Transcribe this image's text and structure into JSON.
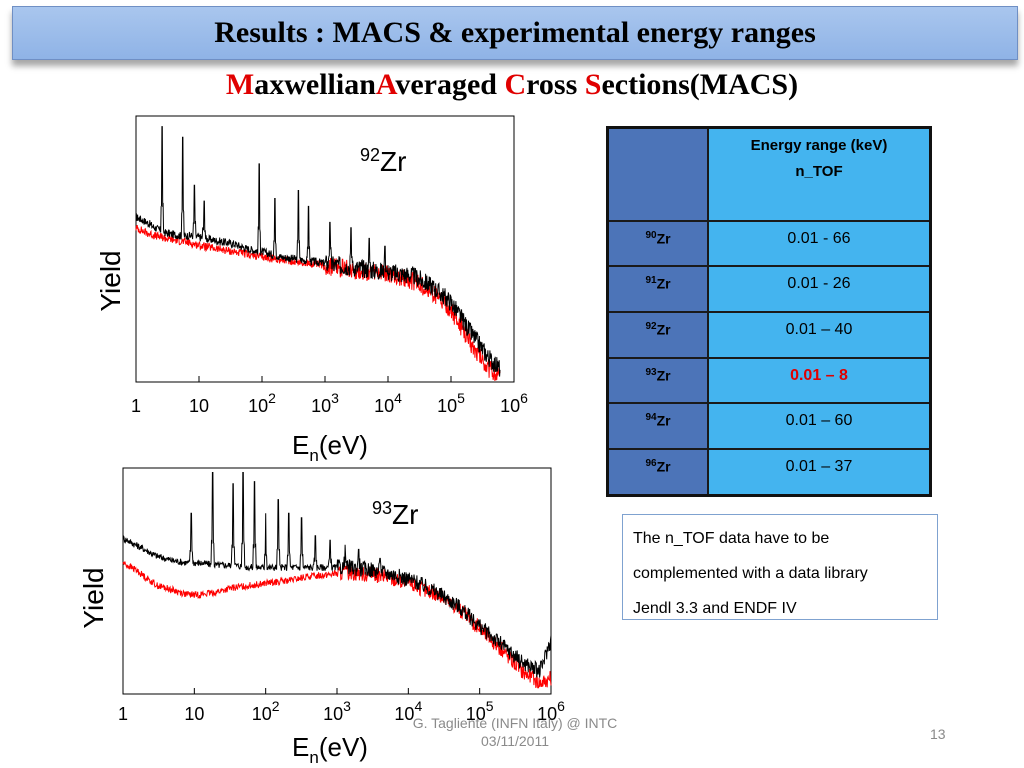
{
  "slide": {
    "title": "Results : MACS & experimental energy ranges",
    "subtitle": {
      "M": "M",
      "axwellian": "axwellian",
      "A": "A",
      "veraged": "veraged ",
      "C": "C",
      "ross": "ross ",
      "S": "S",
      "ections": "ections(MACS)"
    },
    "footer_line1": "G. Tagliente (INFN Italy)  @ INTC",
    "footer_line2": "03/11/2011",
    "page_number": "13"
  },
  "colors": {
    "series_black": "#000000",
    "series_red": "#ff0000",
    "title_bar": "#8fb3e6",
    "table_cell": "#44b4ef",
    "table_header": "#4c74b8",
    "highlight": "#e00000"
  },
  "chart_data": [
    {
      "type": "line",
      "isotope_mass": "92",
      "isotope_symbol": "Zr",
      "ylabel": "Yield",
      "xlabel_main": "E",
      "xlabel_sub": "n",
      "xlabel_unit": "(eV)",
      "x_scale": "log",
      "xlim": [
        1,
        1000000
      ],
      "x_ticks": [
        {
          "value": 1,
          "base": "1",
          "exp": ""
        },
        {
          "value": 10,
          "base": "10",
          "exp": ""
        },
        {
          "value": 100,
          "base": "10",
          "exp": "2"
        },
        {
          "value": 1000,
          "base": "10",
          "exp": "3"
        },
        {
          "value": 10000,
          "base": "10",
          "exp": "4"
        },
        {
          "value": 100000,
          "base": "10",
          "exp": "5"
        },
        {
          "value": 1000000,
          "base": "10",
          "exp": "6"
        }
      ],
      "ylim": [
        0,
        1
      ],
      "series": [
        {
          "color": "#000000",
          "x": [
            1,
            1.5,
            2,
            3,
            5,
            8,
            12,
            20,
            35,
            60,
            100,
            200,
            400,
            800,
            1500,
            3000,
            6000,
            12000,
            25000,
            50000,
            100000,
            200000,
            400000,
            600000
          ],
          "y": [
            0.62,
            0.6,
            0.58,
            0.56,
            0.55,
            0.55,
            0.54,
            0.53,
            0.52,
            0.5,
            0.49,
            0.47,
            0.46,
            0.45,
            0.44,
            0.43,
            0.42,
            0.41,
            0.4,
            0.36,
            0.3,
            0.19,
            0.09,
            0.05
          ],
          "peaks": [
            {
              "x": 2.6,
              "y": 0.96
            },
            {
              "x": 5.5,
              "y": 0.92
            },
            {
              "x": 8.5,
              "y": 0.74
            },
            {
              "x": 12,
              "y": 0.68
            },
            {
              "x": 90,
              "y": 0.82
            },
            {
              "x": 160,
              "y": 0.69
            },
            {
              "x": 380,
              "y": 0.72
            },
            {
              "x": 550,
              "y": 0.66
            },
            {
              "x": 1200,
              "y": 0.6
            },
            {
              "x": 2600,
              "y": 0.58
            },
            {
              "x": 5000,
              "y": 0.54
            },
            {
              "x": 9000,
              "y": 0.51
            }
          ]
        },
        {
          "color": "#ff0000",
          "x": [
            1,
            1.5,
            2,
            3,
            5,
            8,
            12,
            20,
            35,
            60,
            100,
            200,
            400,
            800,
            1500,
            3000,
            6000,
            12000,
            25000,
            50000,
            100000,
            200000,
            400000,
            600000
          ],
          "y": [
            0.58,
            0.56,
            0.55,
            0.54,
            0.53,
            0.52,
            0.51,
            0.5,
            0.49,
            0.48,
            0.47,
            0.46,
            0.45,
            0.44,
            0.43,
            0.42,
            0.41,
            0.4,
            0.38,
            0.34,
            0.27,
            0.15,
            0.05,
            0.02
          ],
          "peaks": []
        }
      ]
    },
    {
      "type": "line",
      "isotope_mass": "93",
      "isotope_symbol": "Zr",
      "ylabel": "Yield",
      "xlabel_main": "E",
      "xlabel_sub": "n",
      "xlabel_unit": "(eV)",
      "x_scale": "log",
      "xlim": [
        1,
        1000000
      ],
      "x_ticks": [
        {
          "value": 1,
          "base": "1",
          "exp": ""
        },
        {
          "value": 10,
          "base": "10",
          "exp": ""
        },
        {
          "value": 100,
          "base": "10",
          "exp": "2"
        },
        {
          "value": 1000,
          "base": "10",
          "exp": "3"
        },
        {
          "value": 10000,
          "base": "10",
          "exp": "4"
        },
        {
          "value": 100000,
          "base": "10",
          "exp": "5"
        },
        {
          "value": 1000000,
          "base": "10",
          "exp": "6"
        }
      ],
      "ylim": [
        0,
        1
      ],
      "series": [
        {
          "color": "#000000",
          "x": [
            1,
            1.5,
            2,
            3,
            5,
            8,
            12,
            20,
            35,
            60,
            100,
            200,
            400,
            800,
            1500,
            3000,
            6000,
            12000,
            25000,
            50000,
            100000,
            200000,
            400000,
            700000,
            1000000
          ],
          "y": [
            0.69,
            0.66,
            0.64,
            0.61,
            0.59,
            0.58,
            0.58,
            0.57,
            0.57,
            0.56,
            0.56,
            0.56,
            0.56,
            0.56,
            0.56,
            0.55,
            0.53,
            0.5,
            0.45,
            0.39,
            0.3,
            0.22,
            0.14,
            0.1,
            0.24
          ],
          "peaks": [
            {
              "x": 9,
              "y": 0.8
            },
            {
              "x": 18,
              "y": 0.98
            },
            {
              "x": 35,
              "y": 0.93
            },
            {
              "x": 48,
              "y": 0.98
            },
            {
              "x": 70,
              "y": 0.94
            },
            {
              "x": 100,
              "y": 0.8
            },
            {
              "x": 150,
              "y": 0.86
            },
            {
              "x": 210,
              "y": 0.8
            },
            {
              "x": 320,
              "y": 0.78
            },
            {
              "x": 500,
              "y": 0.7
            },
            {
              "x": 800,
              "y": 0.68
            },
            {
              "x": 1300,
              "y": 0.66
            },
            {
              "x": 2000,
              "y": 0.64
            },
            {
              "x": 4000,
              "y": 0.6
            }
          ]
        },
        {
          "color": "#ff0000",
          "x": [
            1,
            1.5,
            2,
            3,
            5,
            8,
            12,
            20,
            35,
            60,
            100,
            200,
            400,
            800,
            1500,
            3000,
            6000,
            12000,
            25000,
            50000,
            100000,
            200000,
            400000,
            700000,
            1000000
          ],
          "y": [
            0.58,
            0.55,
            0.52,
            0.48,
            0.46,
            0.44,
            0.44,
            0.45,
            0.47,
            0.48,
            0.49,
            0.5,
            0.52,
            0.53,
            0.54,
            0.53,
            0.51,
            0.48,
            0.44,
            0.38,
            0.29,
            0.2,
            0.1,
            0.05,
            0.07
          ],
          "peaks": []
        }
      ]
    }
  ],
  "table": {
    "header_line1": "Energy range (keV)",
    "header_line2": "n_TOF",
    "rows": [
      {
        "mass": "90",
        "symbol": "Zr",
        "range": "0.01 -  66"
      },
      {
        "mass": "91",
        "symbol": "Zr",
        "range": "0.01 - 26"
      },
      {
        "mass": "92",
        "symbol": "Zr",
        "range": "0.01 – 40"
      },
      {
        "mass": "93",
        "symbol": "Zr",
        "range": "0.01 – 8"
      },
      {
        "mass": "94",
        "symbol": "Zr",
        "range": "0.01 – 60"
      },
      {
        "mass": "96",
        "symbol": "Zr",
        "range": "0.01 – 37"
      }
    ]
  },
  "note": {
    "line1": "The n_TOF data have to be",
    "line2": "complemented with a data library",
    "line3": "Jendl 3.3 and ENDF IV"
  }
}
